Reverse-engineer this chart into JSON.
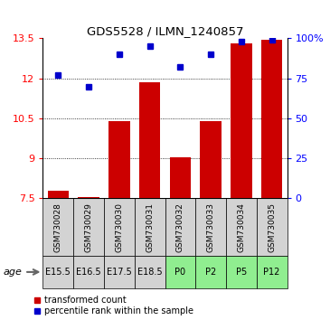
{
  "title": "GDS5528 / ILMN_1240857",
  "samples": [
    "GSM730028",
    "GSM730029",
    "GSM730030",
    "GSM730031",
    "GSM730032",
    "GSM730033",
    "GSM730034",
    "GSM730035"
  ],
  "ages": [
    "E15.5",
    "E16.5",
    "E17.5",
    "E18.5",
    "P0",
    "P2",
    "P5",
    "P12"
  ],
  "age_colors": [
    "#d3d3d3",
    "#d3d3d3",
    "#d3d3d3",
    "#d3d3d3",
    "#90ee90",
    "#90ee90",
    "#90ee90",
    "#90ee90"
  ],
  "bar_values": [
    7.8,
    7.55,
    10.4,
    11.85,
    9.05,
    10.4,
    13.3,
    13.45
  ],
  "dot_values": [
    77,
    70,
    90,
    95,
    82,
    90,
    98,
    99
  ],
  "bar_color": "#cc0000",
  "dot_color": "#0000cc",
  "ylim_left": [
    7.5,
    13.5
  ],
  "ylim_right": [
    0,
    100
  ],
  "yticks_left": [
    7.5,
    9.0,
    10.5,
    12.0,
    13.5
  ],
  "ytick_labels_left": [
    "7.5",
    "9",
    "10.5",
    "12",
    "13.5"
  ],
  "yticks_right": [
    0,
    25,
    50,
    75,
    100
  ],
  "ytick_labels_right": [
    "0",
    "25",
    "50",
    "75",
    "100%"
  ],
  "grid_yticks": [
    9.0,
    10.5,
    12.0
  ],
  "legend_red": "transformed count",
  "legend_blue": "percentile rank within the sample"
}
